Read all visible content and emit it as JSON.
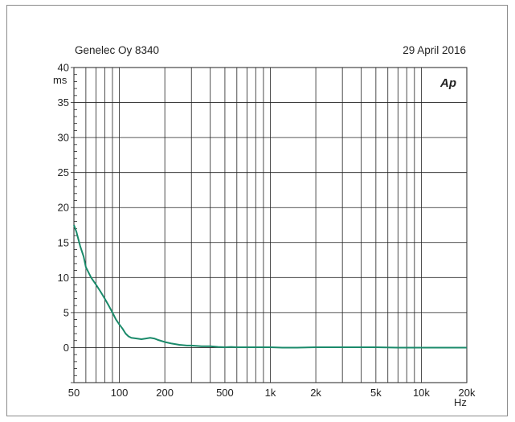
{
  "header": {
    "left": "Genelec Oy 8340",
    "right": "29 April 2016",
    "logo": "Ap"
  },
  "chart_data": {
    "type": "line",
    "title": "",
    "xlabel": "Hz",
    "ylabel": "ms",
    "xscale": "log",
    "xlim": [
      50,
      20000
    ],
    "ylim": [
      -5,
      40
    ],
    "grid": true,
    "line_color": "#1a8a6a",
    "xticks": [
      {
        "value": 50,
        "label": "50"
      },
      {
        "value": 100,
        "label": "100"
      },
      {
        "value": 200,
        "label": "200"
      },
      {
        "value": 500,
        "label": "500"
      },
      {
        "value": 1000,
        "label": "1k"
      },
      {
        "value": 2000,
        "label": "2k"
      },
      {
        "value": 5000,
        "label": "5k"
      },
      {
        "value": 10000,
        "label": "10k"
      },
      {
        "value": 20000,
        "label": "20k"
      }
    ],
    "yticks": [
      0,
      5,
      10,
      15,
      20,
      25,
      30,
      35,
      40
    ],
    "series": [
      {
        "x": [
          50,
          52,
          55,
          58,
          60,
          65,
          70,
          75,
          80,
          85,
          90,
          95,
          100,
          105,
          110,
          115,
          120,
          130,
          140,
          150,
          160,
          170,
          180,
          200,
          220,
          250,
          280,
          300,
          350,
          400,
          450,
          500,
          550,
          600,
          700,
          800,
          900,
          1000,
          1200,
          1500,
          2000,
          3000,
          5000,
          7000,
          10000,
          15000,
          20000
        ],
        "y": [
          17.5,
          16.5,
          14.5,
          13,
          11.5,
          10,
          9,
          8,
          7,
          6,
          5,
          4,
          3.3,
          2.7,
          2,
          1.6,
          1.4,
          1.3,
          1.2,
          1.3,
          1.4,
          1.3,
          1.1,
          0.8,
          0.6,
          0.4,
          0.3,
          0.3,
          0.2,
          0.2,
          0.1,
          0.05,
          0.1,
          0.05,
          0.05,
          0.05,
          0.05,
          0.05,
          0.0,
          0.0,
          0.05,
          0.05,
          0.05,
          0.0,
          0.0,
          0.0,
          0.0
        ]
      }
    ]
  }
}
